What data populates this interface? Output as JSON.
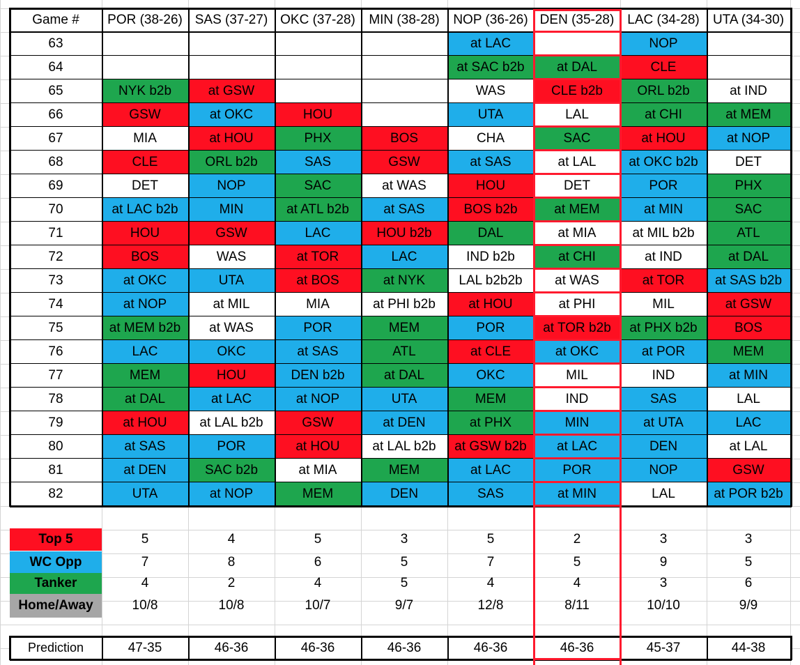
{
  "header": {
    "game_label": "Game #",
    "teams": [
      "POR (38-26)",
      "SAS (37-27)",
      "OKC (37-28)",
      "MIN (38-28)",
      "NOP (36-26)",
      "DEN (35-28)",
      "LAC (34-28)",
      "UTA (34-30)"
    ]
  },
  "colors": {
    "red": "#fe0f21",
    "blue": "#1faeea",
    "green": "#1ea64e",
    "grey": "#a6a6a6",
    "white": "#ffffff",
    "highlight": "#ff1a2e"
  },
  "highlight_team": "DEN (35-28)",
  "games": [
    {
      "num": "63",
      "cells": [
        [
          "",
          "w"
        ],
        [
          "",
          "w"
        ],
        [
          "",
          "w"
        ],
        [
          "",
          "w"
        ],
        [
          "at LAC",
          "b"
        ],
        [
          "",
          "w"
        ],
        [
          "NOP",
          "b"
        ],
        [
          "",
          "w"
        ]
      ]
    },
    {
      "num": "64",
      "cells": [
        [
          "",
          "w"
        ],
        [
          "",
          "w"
        ],
        [
          "",
          "w"
        ],
        [
          "",
          "w"
        ],
        [
          "at SAC b2b",
          "g"
        ],
        [
          "at DAL",
          "g"
        ],
        [
          "CLE",
          "r"
        ],
        [
          "",
          "w"
        ]
      ]
    },
    {
      "num": "65",
      "cells": [
        [
          "NYK b2b",
          "g"
        ],
        [
          "at GSW",
          "r"
        ],
        [
          "",
          "w"
        ],
        [
          "",
          "w"
        ],
        [
          "WAS",
          "w"
        ],
        [
          "CLE b2b",
          "r"
        ],
        [
          "ORL b2b",
          "g"
        ],
        [
          "at IND",
          "w"
        ]
      ]
    },
    {
      "num": "66",
      "cells": [
        [
          "GSW",
          "r"
        ],
        [
          "at OKC",
          "b"
        ],
        [
          "HOU",
          "r"
        ],
        [
          "",
          "w"
        ],
        [
          "UTA",
          "b"
        ],
        [
          "LAL",
          "w"
        ],
        [
          "at CHI",
          "g"
        ],
        [
          "at MEM",
          "g"
        ]
      ]
    },
    {
      "num": "67",
      "cells": [
        [
          "MIA",
          "w"
        ],
        [
          "at HOU",
          "r"
        ],
        [
          "PHX",
          "g"
        ],
        [
          "BOS",
          "r"
        ],
        [
          "CHA",
          "w"
        ],
        [
          "SAC",
          "g"
        ],
        [
          "at HOU",
          "r"
        ],
        [
          "at NOP",
          "b"
        ]
      ]
    },
    {
      "num": "68",
      "cells": [
        [
          "CLE",
          "r"
        ],
        [
          "ORL b2b",
          "g"
        ],
        [
          "SAS",
          "b"
        ],
        [
          "GSW",
          "r"
        ],
        [
          "at SAS",
          "b"
        ],
        [
          "at LAL",
          "w"
        ],
        [
          "at OKC b2b",
          "b"
        ],
        [
          "DET",
          "w"
        ]
      ]
    },
    {
      "num": "69",
      "cells": [
        [
          "DET",
          "w"
        ],
        [
          "NOP",
          "b"
        ],
        [
          "SAC",
          "g"
        ],
        [
          "at WAS",
          "w"
        ],
        [
          "HOU",
          "r"
        ],
        [
          "DET",
          "w"
        ],
        [
          "POR",
          "b"
        ],
        [
          "PHX",
          "g"
        ]
      ]
    },
    {
      "num": "70",
      "cells": [
        [
          "at LAC b2b",
          "b"
        ],
        [
          "MIN",
          "b"
        ],
        [
          "at ATL b2b",
          "g"
        ],
        [
          "at SAS",
          "b"
        ],
        [
          "BOS b2b",
          "r"
        ],
        [
          "at MEM",
          "g"
        ],
        [
          "at MIN",
          "b"
        ],
        [
          "SAC",
          "g"
        ]
      ]
    },
    {
      "num": "71",
      "cells": [
        [
          "HOU",
          "r"
        ],
        [
          "GSW",
          "r"
        ],
        [
          "LAC",
          "b"
        ],
        [
          "HOU b2b",
          "r"
        ],
        [
          "DAL",
          "g"
        ],
        [
          "at MIA",
          "w"
        ],
        [
          "at MIL b2b",
          "w"
        ],
        [
          "ATL",
          "g"
        ]
      ]
    },
    {
      "num": "72",
      "cells": [
        [
          "BOS",
          "r"
        ],
        [
          "WAS",
          "w"
        ],
        [
          "at TOR",
          "r"
        ],
        [
          "LAC",
          "b"
        ],
        [
          "IND b2b",
          "w"
        ],
        [
          "at CHI",
          "g"
        ],
        [
          "at IND",
          "w"
        ],
        [
          "at DAL",
          "g"
        ]
      ]
    },
    {
      "num": "73",
      "cells": [
        [
          "at OKC",
          "b"
        ],
        [
          "UTA",
          "b"
        ],
        [
          "at BOS",
          "r"
        ],
        [
          "at NYK",
          "g"
        ],
        [
          "LAL b2b2b",
          "w"
        ],
        [
          "at WAS",
          "w"
        ],
        [
          "at TOR",
          "r"
        ],
        [
          "at SAS b2b",
          "b"
        ]
      ]
    },
    {
      "num": "74",
      "cells": [
        [
          "at NOP",
          "b"
        ],
        [
          "at MIL",
          "w"
        ],
        [
          "MIA",
          "w"
        ],
        [
          "at PHI b2b",
          "w"
        ],
        [
          "at HOU",
          "r"
        ],
        [
          "at PHI",
          "w"
        ],
        [
          "MIL",
          "w"
        ],
        [
          "at GSW",
          "r"
        ]
      ]
    },
    {
      "num": "75",
      "cells": [
        [
          "at MEM b2b",
          "g"
        ],
        [
          "at WAS",
          "w"
        ],
        [
          "POR",
          "b"
        ],
        [
          "MEM",
          "g"
        ],
        [
          "POR",
          "b"
        ],
        [
          "at TOR b2b",
          "r"
        ],
        [
          "at PHX b2b",
          "g"
        ],
        [
          "BOS",
          "r"
        ]
      ]
    },
    {
      "num": "76",
      "cells": [
        [
          "LAC",
          "b"
        ],
        [
          "OKC",
          "b"
        ],
        [
          "at SAS",
          "b"
        ],
        [
          "ATL",
          "g"
        ],
        [
          "at CLE",
          "r"
        ],
        [
          "at OKC",
          "b"
        ],
        [
          "at POR",
          "b"
        ],
        [
          "MEM",
          "g"
        ]
      ]
    },
    {
      "num": "77",
      "cells": [
        [
          "MEM",
          "g"
        ],
        [
          "HOU",
          "r"
        ],
        [
          "DEN b2b",
          "b"
        ],
        [
          "at DAL",
          "g"
        ],
        [
          "OKC",
          "b"
        ],
        [
          "MIL",
          "w"
        ],
        [
          "IND",
          "w"
        ],
        [
          "at MIN",
          "b"
        ]
      ]
    },
    {
      "num": "78",
      "cells": [
        [
          "at DAL",
          "g"
        ],
        [
          "at LAC",
          "b"
        ],
        [
          "at NOP",
          "b"
        ],
        [
          "UTA",
          "b"
        ],
        [
          "MEM",
          "g"
        ],
        [
          "IND",
          "w"
        ],
        [
          "SAS",
          "b"
        ],
        [
          "LAL",
          "w"
        ]
      ]
    },
    {
      "num": "79",
      "cells": [
        [
          "at HOU",
          "r"
        ],
        [
          "at LAL b2b",
          "w"
        ],
        [
          "GSW",
          "r"
        ],
        [
          "at DEN",
          "b"
        ],
        [
          "at PHX",
          "g"
        ],
        [
          "MIN",
          "b"
        ],
        [
          "at UTA",
          "b"
        ],
        [
          "LAC",
          "b"
        ]
      ]
    },
    {
      "num": "80",
      "cells": [
        [
          "at SAS",
          "b"
        ],
        [
          "POR",
          "b"
        ],
        [
          "at HOU",
          "r"
        ],
        [
          "at LAL b2b",
          "w"
        ],
        [
          "at GSW b2b",
          "r"
        ],
        [
          "at LAC",
          "b"
        ],
        [
          "DEN",
          "b"
        ],
        [
          "at LAL",
          "w"
        ]
      ]
    },
    {
      "num": "81",
      "cells": [
        [
          "at DEN",
          "b"
        ],
        [
          "SAC b2b",
          "g"
        ],
        [
          "at MIA",
          "w"
        ],
        [
          "MEM",
          "g"
        ],
        [
          "at LAC",
          "b"
        ],
        [
          "POR",
          "b"
        ],
        [
          "NOP",
          "b"
        ],
        [
          "GSW",
          "r"
        ]
      ]
    },
    {
      "num": "82",
      "cells": [
        [
          "UTA",
          "b"
        ],
        [
          "at NOP",
          "b"
        ],
        [
          "MEM",
          "g"
        ],
        [
          "DEN",
          "b"
        ],
        [
          "SAS",
          "b"
        ],
        [
          "at MIN",
          "b"
        ],
        [
          "LAL",
          "w"
        ],
        [
          "at POR b2b",
          "b"
        ]
      ]
    }
  ],
  "summary": [
    {
      "label": "Top 5",
      "color": "r",
      "values": [
        "5",
        "4",
        "5",
        "3",
        "5",
        "2",
        "3",
        "3"
      ]
    },
    {
      "label": "WC Opp",
      "color": "b",
      "values": [
        "7",
        "8",
        "6",
        "5",
        "7",
        "5",
        "9",
        "5"
      ]
    },
    {
      "label": "Tanker",
      "color": "g",
      "values": [
        "4",
        "2",
        "4",
        "5",
        "4",
        "4",
        "3",
        "6"
      ]
    },
    {
      "label": "Home/Away",
      "color": "grey",
      "values": [
        "10/8",
        "10/8",
        "10/7",
        "9/7",
        "12/8",
        "8/11",
        "10/10",
        "9/9"
      ]
    }
  ],
  "prediction": {
    "label": "Prediction",
    "values": [
      "47-35",
      "46-36",
      "46-36",
      "46-36",
      "46-36",
      "46-36",
      "45-37",
      "44-38"
    ]
  }
}
